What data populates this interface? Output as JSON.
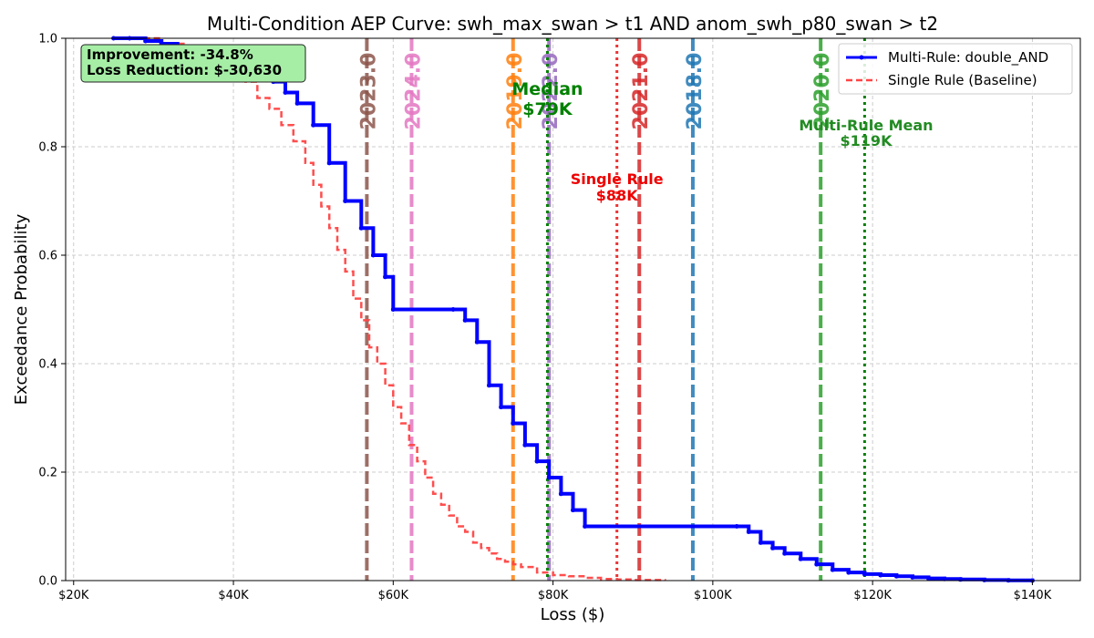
{
  "chart_data": {
    "type": "line",
    "title": "Multi-Condition AEP Curve: swh_max_swan > t1 AND anom_swh_p80_swan > t2",
    "xlabel": "Loss ($)",
    "ylabel": "Exceedance Probability",
    "xlim": [
      19000,
      146000
    ],
    "ylim": [
      0,
      1
    ],
    "xticks": [
      20000,
      40000,
      60000,
      80000,
      100000,
      120000,
      140000
    ],
    "xtick_labels": [
      "$20K",
      "$40K",
      "$60K",
      "$80K",
      "$100K",
      "$120K",
      "$140K"
    ],
    "yticks": [
      0,
      0.2,
      0.4,
      0.6,
      0.8,
      1.0
    ],
    "ytick_labels": [
      "0.0",
      "0.2",
      "0.4",
      "0.6",
      "0.8",
      "1.0"
    ],
    "grid": true,
    "legend_position": "top-right",
    "series": [
      {
        "name": "Multi-Rule: double_AND",
        "color": "#0000ff",
        "style": "solid-step",
        "x": [
          25000,
          27000,
          29000,
          31000,
          33000,
          35000,
          37000,
          39000,
          41000,
          43000,
          45000,
          46500,
          48000,
          50000,
          52000,
          54000,
          56000,
          57500,
          59000,
          60000,
          67500,
          69000,
          70500,
          72000,
          73500,
          75000,
          76500,
          78000,
          79500,
          81000,
          82500,
          84000,
          103000,
          104500,
          106000,
          107500,
          109000,
          111000,
          113000,
          115000,
          117000,
          119000,
          121000,
          123000,
          125000,
          127000,
          129000,
          131000,
          134000,
          137000,
          140000
        ],
        "y": [
          1.0,
          1.0,
          0.995,
          0.99,
          0.98,
          0.975,
          0.965,
          0.955,
          0.94,
          0.93,
          0.92,
          0.9,
          0.88,
          0.84,
          0.77,
          0.7,
          0.65,
          0.6,
          0.56,
          0.5,
          0.5,
          0.48,
          0.44,
          0.36,
          0.32,
          0.29,
          0.25,
          0.22,
          0.19,
          0.16,
          0.13,
          0.1,
          0.1,
          0.09,
          0.07,
          0.06,
          0.05,
          0.04,
          0.03,
          0.02,
          0.015,
          0.012,
          0.01,
          0.008,
          0.006,
          0.004,
          0.003,
          0.002,
          0.001,
          0.0005,
          0.0
        ]
      },
      {
        "name": "Single Rule (Baseline)",
        "color": "#ff4444",
        "style": "dashed-step",
        "x": [
          25000,
          28000,
          31000,
          34000,
          36000,
          38000,
          40000,
          41500,
          43000,
          44500,
          46000,
          47500,
          49000,
          50000,
          51000,
          52000,
          53000,
          54000,
          55000,
          56000,
          57000,
          58000,
          59000,
          60000,
          61000,
          62000,
          63000,
          64000,
          65000,
          66000,
          67000,
          68000,
          69000,
          70000,
          71000,
          72000,
          73000,
          74000,
          75000,
          76000,
          78000,
          80000,
          82000,
          84000,
          86000,
          88000,
          90000,
          94000
        ],
        "y": [
          1.0,
          1.0,
          0.99,
          0.98,
          0.97,
          0.96,
          0.94,
          0.92,
          0.89,
          0.87,
          0.84,
          0.81,
          0.77,
          0.73,
          0.69,
          0.65,
          0.61,
          0.57,
          0.52,
          0.48,
          0.43,
          0.4,
          0.36,
          0.32,
          0.29,
          0.25,
          0.22,
          0.19,
          0.16,
          0.14,
          0.12,
          0.1,
          0.09,
          0.07,
          0.06,
          0.05,
          0.04,
          0.035,
          0.03,
          0.025,
          0.015,
          0.01,
          0.008,
          0.005,
          0.003,
          0.002,
          0.001,
          0.0
        ]
      }
    ],
    "year_lines": [
      {
        "label": "2023.0",
        "x": 56700,
        "color": "#8c564b"
      },
      {
        "label": "2024.0",
        "x": 62300,
        "color": "#e377c2"
      },
      {
        "label": "2019.0",
        "x": 75000,
        "color": "#ff7f0e"
      },
      {
        "label": "2022.0",
        "x": 79500,
        "color": "#9467bd"
      },
      {
        "label": "2021.0",
        "x": 90800,
        "color": "#d62728"
      },
      {
        "label": "2018.0",
        "x": 97500,
        "color": "#1f77b4"
      },
      {
        "label": "2020.0",
        "x": 113500,
        "color": "#2ca02c"
      }
    ],
    "reference_lines": [
      {
        "id": "median",
        "x": 79300,
        "color": "#008000",
        "text_line1": "Median",
        "text_line2": "$79K"
      },
      {
        "id": "single-rule",
        "x": 88000,
        "color": "#ee3333",
        "text_line1": "Single Rule",
        "text_line2": "$88K"
      },
      {
        "id": "multi-rule-mean",
        "x": 119000,
        "color": "#008000",
        "text_line1": "Multi-Rule Mean",
        "text_line2": "$119K"
      }
    ],
    "info_box": {
      "line1": "Improvement: -34.8%",
      "line2": "Loss Reduction: $-30,630",
      "background": "#a6eea6"
    }
  }
}
